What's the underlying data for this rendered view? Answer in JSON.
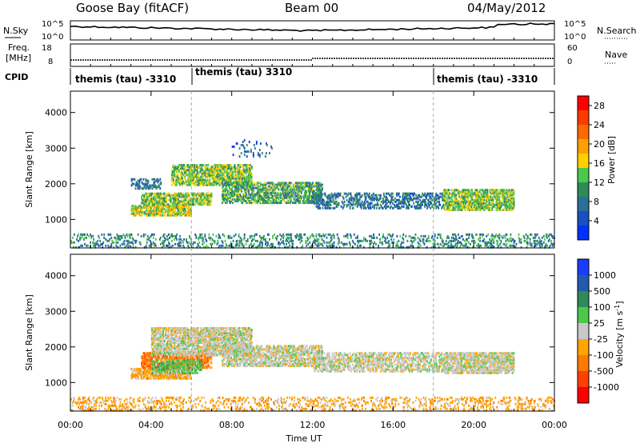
{
  "header": {
    "station": "Goose Bay (fitACF)",
    "beam": "Beam 00",
    "date": "04/May/2012"
  },
  "noise_panel": {
    "left_label": "N.Sky",
    "right_label": "N.Search",
    "left_ticks": [
      "10^5",
      "10^0"
    ],
    "right_ticks": [
      "10^5",
      "10^0"
    ]
  },
  "freq_panel": {
    "left_label_1": "Freq.",
    "left_label_2": "[MHz]",
    "right_label": "Nave",
    "left_ticks": [
      "18",
      "8"
    ],
    "right_ticks": [
      "60",
      "0"
    ]
  },
  "cpid_panel": {
    "label": "CPID",
    "segments": [
      {
        "text": "themis (tau) -3310",
        "start_h": 0
      },
      {
        "text": "themis (tau) 3310",
        "start_h": 6
      },
      {
        "text": "themis (tau) -3310",
        "start_h": 18
      }
    ]
  },
  "chart_data": [
    {
      "type": "heatmap",
      "panel": "power",
      "ylabel": "Slant Range [km]",
      "ylim": [
        200,
        4600
      ],
      "yticks": [
        "1000",
        "2000",
        "3000",
        "4000"
      ],
      "xlim": [
        0,
        24
      ],
      "colorbar": {
        "label": "Power [dB]",
        "ticks": [
          "4",
          "8",
          "12",
          "16",
          "20",
          "24",
          "28"
        ],
        "colors": [
          "#0033ff",
          "#1a4fc0",
          "#2a6f9a",
          "#2e8b57",
          "#4cc84c",
          "#ffd000",
          "#ffa000",
          "#ff6a00",
          "#ff3b00",
          "#ff0000"
        ]
      },
      "bands": [
        {
          "t0": 3.0,
          "t1": 6.0,
          "r0": 1150,
          "r1": 1450,
          "level": 14,
          "density": 0.6
        },
        {
          "t0": 3.5,
          "t1": 7.0,
          "r0": 1450,
          "r1": 1800,
          "level": 12,
          "density": 0.55
        },
        {
          "t0": 3.0,
          "t1": 4.5,
          "r0": 1900,
          "r1": 2200,
          "level": 6,
          "density": 0.35
        },
        {
          "t0": 5.0,
          "t1": 9.0,
          "r0": 2000,
          "r1": 2600,
          "level": 12,
          "density": 0.55
        },
        {
          "t0": 7.5,
          "t1": 12.5,
          "r0": 1500,
          "r1": 2100,
          "level": 10,
          "density": 0.5
        },
        {
          "t0": 12.0,
          "t1": 18.5,
          "r0": 1350,
          "r1": 1800,
          "level": 6,
          "density": 0.35
        },
        {
          "t0": 18.5,
          "t1": 22.0,
          "r0": 1300,
          "r1": 1900,
          "level": 12,
          "density": 0.55
        },
        {
          "t0": 0.0,
          "t1": 24.0,
          "r0": 250,
          "r1": 650,
          "level": 8,
          "density": 0.18
        },
        {
          "t0": 8.0,
          "t1": 10.0,
          "r0": 2800,
          "r1": 3300,
          "level": 4,
          "density": 0.1
        }
      ]
    },
    {
      "type": "heatmap",
      "panel": "velocity",
      "ylabel": "Slant Range [km]",
      "ylim": [
        200,
        4600
      ],
      "yticks": [
        "1000",
        "2000",
        "3000",
        "4000"
      ],
      "xlim": [
        0,
        24
      ],
      "xticks": [
        "00:00",
        "04:00",
        "08:00",
        "12:00",
        "16:00",
        "20:00",
        "00:00"
      ],
      "xlabel": "Time UT",
      "colorbar": {
        "label": "Velocity [m s^-1]",
        "ticks": [
          "1000",
          "500",
          "100",
          "25",
          "-25",
          "-100",
          "-500",
          "-1000"
        ],
        "colors": [
          "#1a3cff",
          "#1f5cb0",
          "#2e8b57",
          "#4cc84c",
          "#c8c8c8",
          "#ffa500",
          "#ff7a00",
          "#ff4000",
          "#ff0000"
        ]
      },
      "bands": [
        {
          "t0": 3.0,
          "t1": 6.0,
          "r0": 1150,
          "r1": 1450,
          "level": 5,
          "density": 0.6
        },
        {
          "t0": 3.5,
          "t1": 7.0,
          "r0": 1450,
          "r1": 1900,
          "level": 6,
          "density": 0.55
        },
        {
          "t0": 4.0,
          "t1": 6.5,
          "r0": 1300,
          "r1": 1700,
          "level": 3,
          "density": 0.4
        },
        {
          "t0": 4.0,
          "t1": 9.0,
          "r0": 1800,
          "r1": 2600,
          "level": 4,
          "density": 0.6
        },
        {
          "t0": 7.5,
          "t1": 12.5,
          "r0": 1500,
          "r1": 2100,
          "level": 4,
          "density": 0.55
        },
        {
          "t0": 12.0,
          "t1": 18.5,
          "r0": 1350,
          "r1": 1900,
          "level": 4,
          "density": 0.45
        },
        {
          "t0": 18.5,
          "t1": 22.0,
          "r0": 1300,
          "r1": 1900,
          "level": 4,
          "density": 0.6
        },
        {
          "t0": 0.0,
          "t1": 24.0,
          "r0": 250,
          "r1": 650,
          "level": 5,
          "density": 0.18
        }
      ]
    }
  ]
}
